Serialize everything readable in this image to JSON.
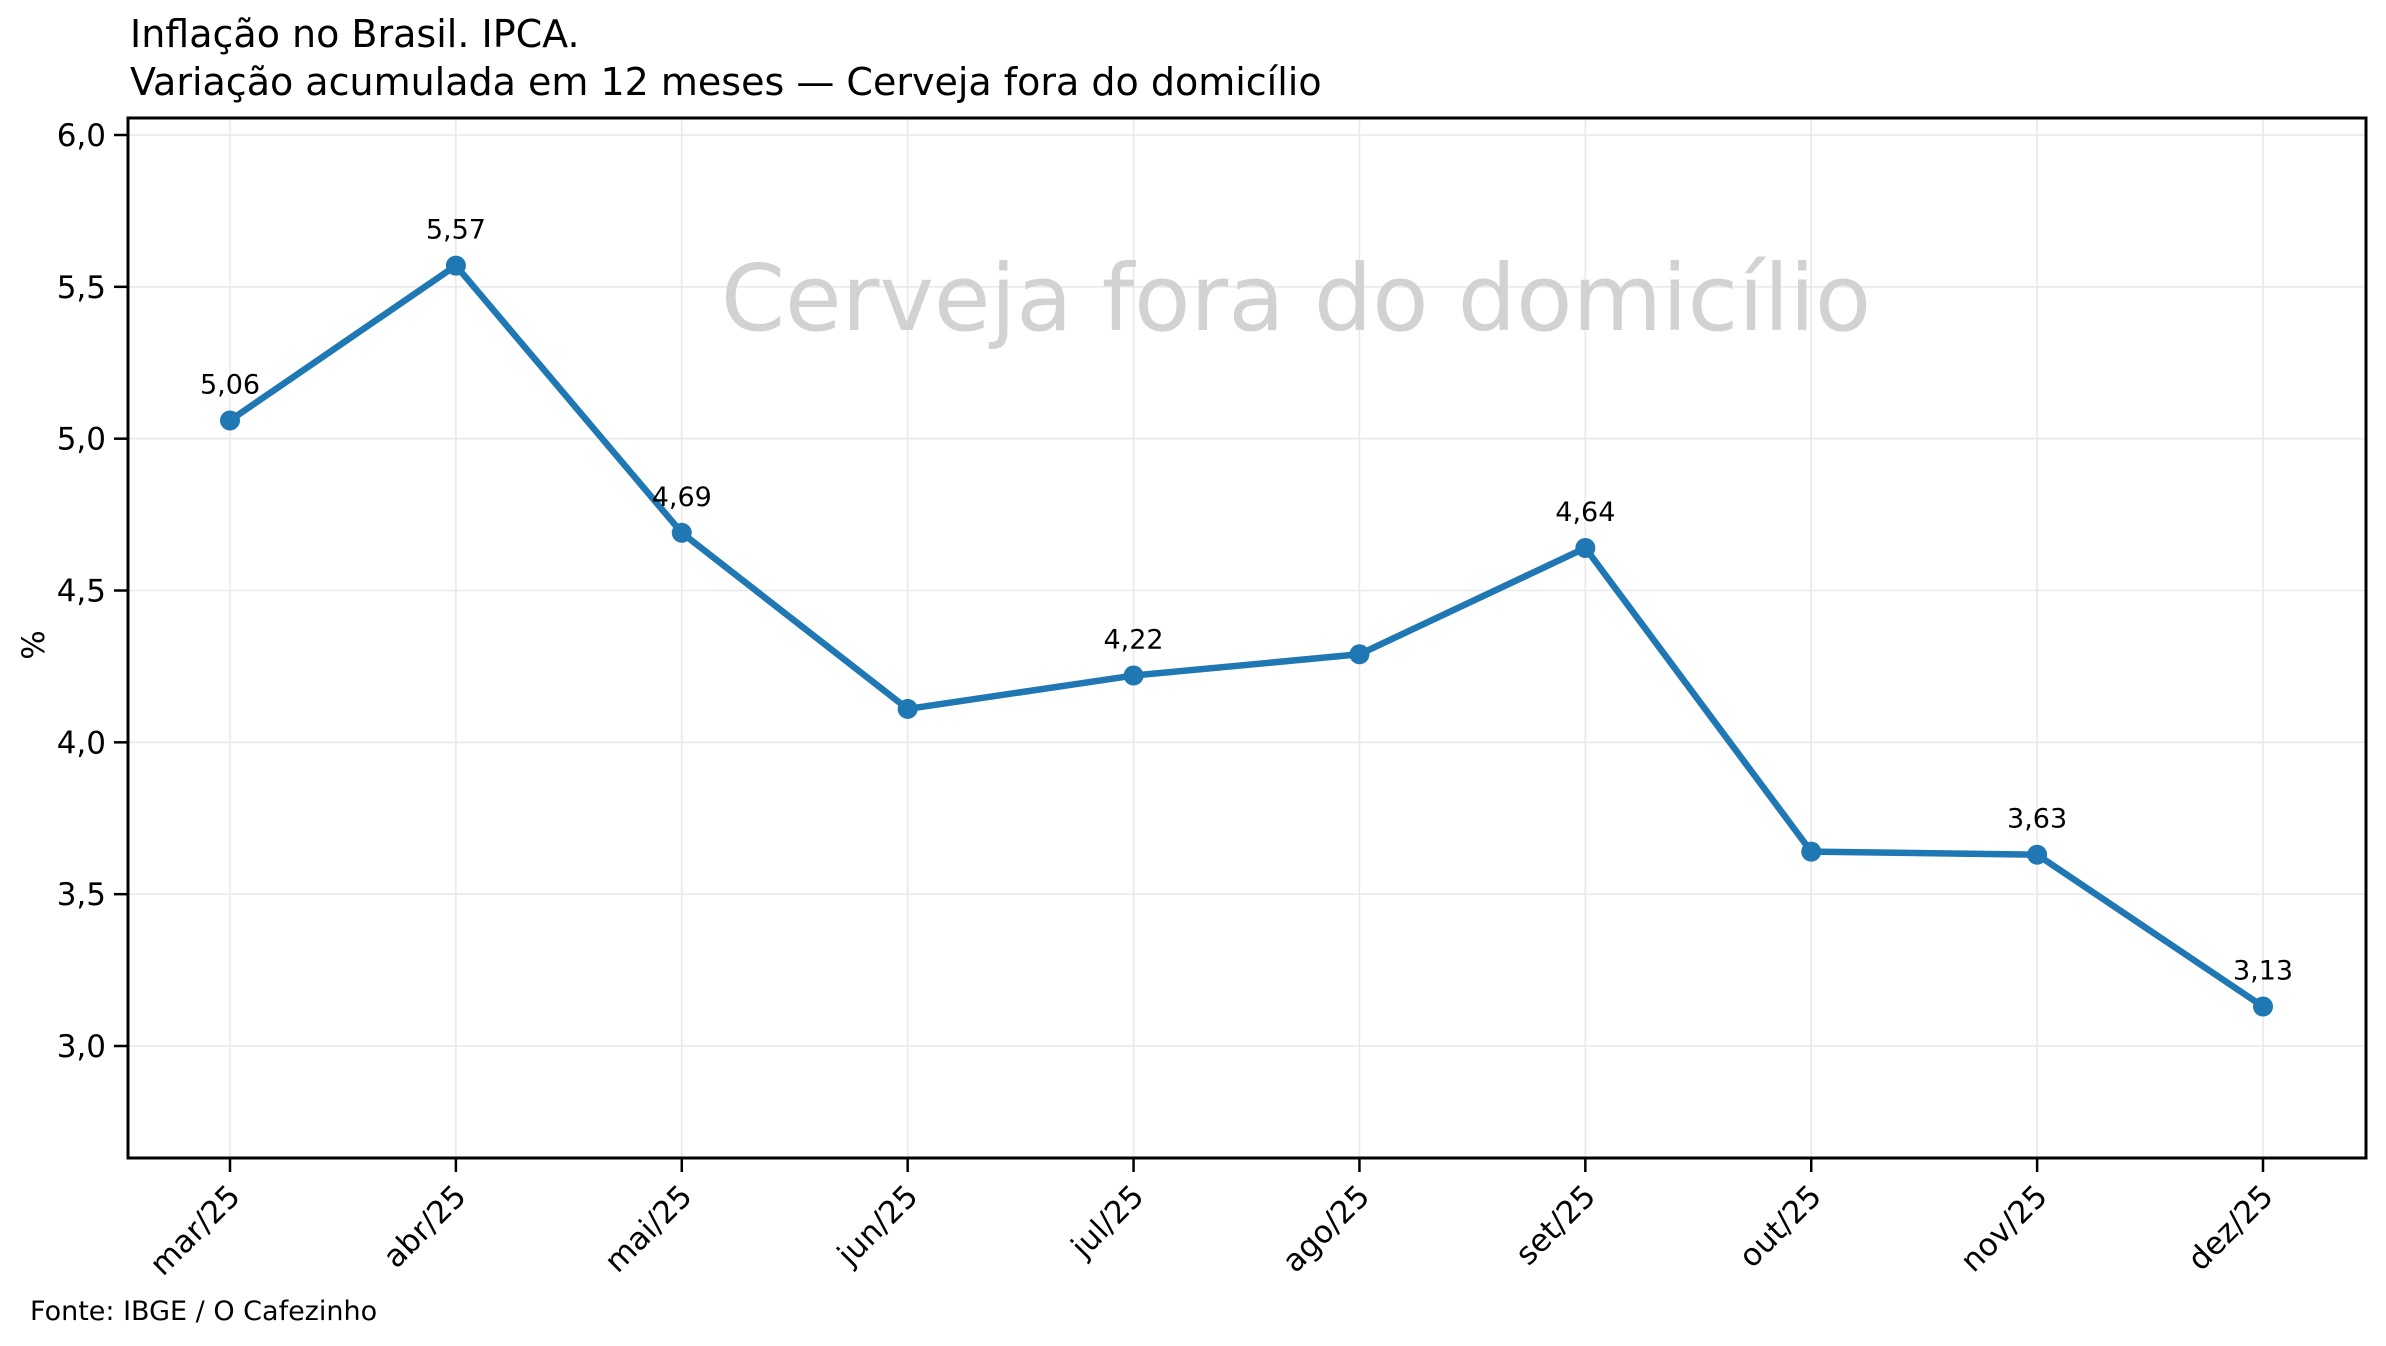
{
  "header": {
    "title_line1": "Inflação no Brasil. IPCA.",
    "title_line2": "Variação acumulada em 12 meses — Cerveja fora do domicílio"
  },
  "watermark_text": "Cerveja fora do domicílio",
  "footer": {
    "source": "Fonte: IBGE / O Cafezinho"
  },
  "chart_data": {
    "type": "line",
    "title": "Inflação no Brasil. IPCA. Variação acumulada em 12 meses — Cerveja fora do domicílio",
    "categories": [
      "mar/25",
      "abr/25",
      "mai/25",
      "jun/25",
      "jul/25",
      "ago/25",
      "set/25",
      "out/25",
      "nov/25",
      "dez/25"
    ],
    "values": [
      5.06,
      5.57,
      4.69,
      4.11,
      4.22,
      4.29,
      4.64,
      3.64,
      3.63,
      3.13
    ],
    "point_labels": [
      "5,06",
      "5,57",
      "4,69",
      "",
      "4,22",
      "",
      "4,64",
      "",
      "3,63",
      "3,13"
    ],
    "xlabel": "",
    "ylabel": "%",
    "yticks": [
      6.0,
      5.5,
      5.0,
      4.5,
      4.0,
      3.5,
      3.0
    ],
    "ytick_labels": [
      "6,0",
      "5,5",
      "5,0",
      "4,5",
      "4,0",
      "3,5",
      "3,0"
    ],
    "ylim": [
      2.63,
      6.06
    ],
    "grid": true,
    "legend_position": "none",
    "colors": {
      "line": "#1f77b4",
      "marker": "#1f77b4",
      "grid": "#e9e9e9",
      "spine": "#000000",
      "text": "#000000",
      "watermark": "#d2d2d2",
      "background": "#ffffff"
    }
  }
}
